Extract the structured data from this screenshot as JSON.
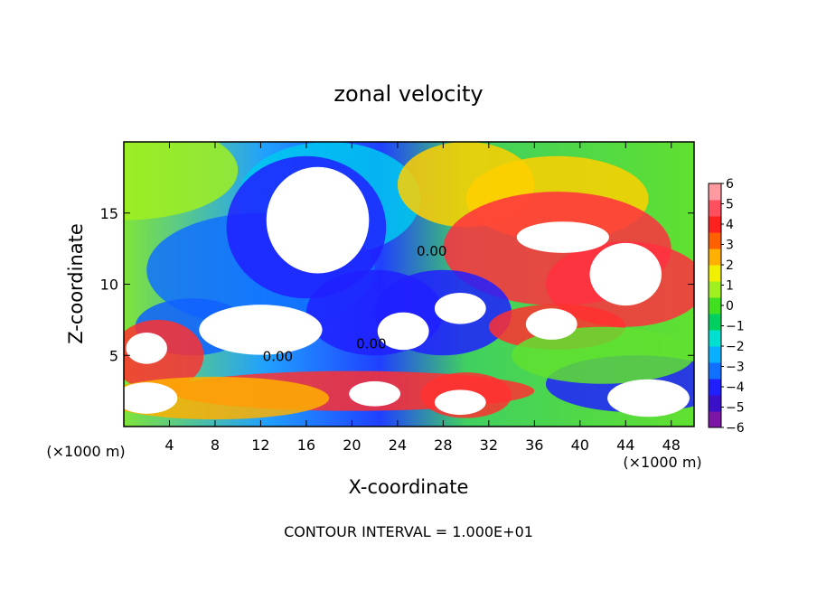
{
  "chart_data": {
    "type": "heatmap",
    "title": "zonal velocity",
    "xlabel": "X-coordinate",
    "ylabel": "Z-coordinate",
    "x_unit_label": "(×1000 m)",
    "x_unit_label_right": "(×1000 m)",
    "xlim": [
      0,
      50
    ],
    "ylim": [
      0,
      20
    ],
    "xticks": [
      4,
      8,
      12,
      16,
      20,
      24,
      28,
      32,
      36,
      40,
      44,
      48
    ],
    "yticks": [
      5,
      10,
      15
    ],
    "colorbar": {
      "min": -6,
      "max": 6,
      "ticks": [
        6,
        5,
        4,
        3,
        2,
        1,
        0,
        -1,
        -2,
        -3,
        -4,
        -5,
        -6
      ],
      "tick_labels": [
        "6",
        "5",
        "4",
        "3",
        "2",
        "1",
        "0",
        "−1",
        "−2",
        "−3",
        "−4",
        "−5",
        "−6"
      ],
      "colors": [
        "#7b16a6",
        "#3a10c8",
        "#2020ff",
        "#1070ff",
        "#08b0ff",
        "#00e0d0",
        "#00d060",
        "#40e020",
        "#a0f020",
        "#f0f000",
        "#ffb000",
        "#ff6000",
        "#ff2020",
        "#ff5060",
        "#ff9aa0"
      ]
    },
    "contour_labels": [
      {
        "text": "0.00",
        "x": 13.5,
        "z": 4.6
      },
      {
        "text": "0.00",
        "x": 21.7,
        "z": 5.5
      },
      {
        "text": "0.00",
        "x": 27.0,
        "z": 12.0
      }
    ],
    "features": [
      {
        "kind": "max-negative",
        "x": 17,
        "z": 14.5
      },
      {
        "kind": "max-negative",
        "x": 12,
        "z": 6.8
      },
      {
        "kind": "max-negative",
        "x": 24.5,
        "z": 6.7
      },
      {
        "kind": "max-negative",
        "x": 29.5,
        "z": 8.3
      },
      {
        "kind": "max-positive",
        "x": 38.5,
        "z": 13.3
      },
      {
        "kind": "max-positive",
        "x": 44,
        "z": 10.7
      },
      {
        "kind": "max-positive",
        "x": 37.5,
        "z": 7.2
      },
      {
        "kind": "max-positive",
        "x": 22,
        "z": 2.3
      },
      {
        "kind": "max-positive",
        "x": 29.5,
        "z": 1.7
      },
      {
        "kind": "max-positive",
        "x": 2,
        "z": 5.5
      },
      {
        "kind": "max-negative",
        "x": 2,
        "z": 2.0
      },
      {
        "kind": "max-negative",
        "x": 46,
        "z": 2.0
      }
    ],
    "footer": "CONTOUR INTERVAL = 1.000E+01"
  }
}
